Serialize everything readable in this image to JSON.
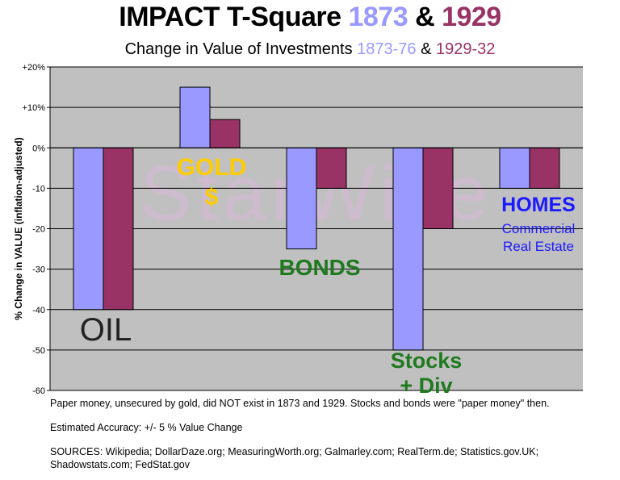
{
  "title": {
    "main": "IMPACT  T-Square",
    "year1": "1873",
    "amp": "&",
    "year2": "1929"
  },
  "subtitle": {
    "main": "Change in Value of Investments",
    "period1": "1873-76",
    "amp": "&",
    "period2": "1929-32"
  },
  "colors": {
    "series1": "#9999ff",
    "series2": "#993366",
    "plot_bg": "#c0c0c0",
    "grid": "#000000",
    "year1_text": "#9999ff",
    "year2_text": "#993366",
    "label_oil": "#222222",
    "label_gold": "#ffcc00",
    "label_green": "#1f7a1f",
    "label_blue": "#1a1aff",
    "watermark": "#d8b8d8"
  },
  "watermark": "StarWise",
  "chart_data": {
    "type": "bar",
    "categories": [
      "OIL",
      "GOLD $",
      "BONDS",
      "Stocks + Div",
      "HOMES Commercial Real Estate"
    ],
    "series": [
      {
        "name": "1873-76",
        "values": [
          -40,
          15,
          -25,
          -50,
          -10
        ]
      },
      {
        "name": "1929-32",
        "values": [
          -40,
          7,
          -10,
          -20,
          -10
        ]
      }
    ],
    "ylabel": "% Change in VALUE  (inflation-adjusted)",
    "ylim": [
      -60,
      20
    ],
    "yticks": [
      {
        "value": 20,
        "label": "+20%"
      },
      {
        "value": 10,
        "label": "+10%"
      },
      {
        "value": 0,
        "label": "0%"
      },
      {
        "value": -10,
        "label": "-10"
      },
      {
        "value": -20,
        "label": "-20"
      },
      {
        "value": -30,
        "label": "-30"
      },
      {
        "value": -40,
        "label": "-40"
      },
      {
        "value": -50,
        "label": "-50"
      },
      {
        "value": -60,
        "label": "-60"
      }
    ],
    "grid": true,
    "annotations": [
      {
        "id": "oil",
        "lines": [
          "OIL"
        ]
      },
      {
        "id": "gold",
        "lines": [
          "GOLD",
          "$"
        ]
      },
      {
        "id": "bonds",
        "lines": [
          "BONDS"
        ]
      },
      {
        "id": "stocks",
        "lines": [
          "Stocks",
          "+ Div"
        ]
      },
      {
        "id": "homes",
        "lines": [
          "HOMES",
          "Commercial",
          "Real Estate"
        ]
      }
    ]
  },
  "footer": {
    "note": "Paper money, unsecured by gold, did NOT exist in 1873 and 1929.  Stocks and bonds were \"paper money\" then.",
    "accuracy": "Estimated Accuracy: +/- 5 % Value Change",
    "sources_line1": "SOURCES:  Wikipedia; DollarDaze.org; MeasuringWorth.org; Galmarley.com; RealTerm.de; Statistics.gov.UK;",
    "sources_line2": "Shadowstats.com; FedStat.gov"
  }
}
